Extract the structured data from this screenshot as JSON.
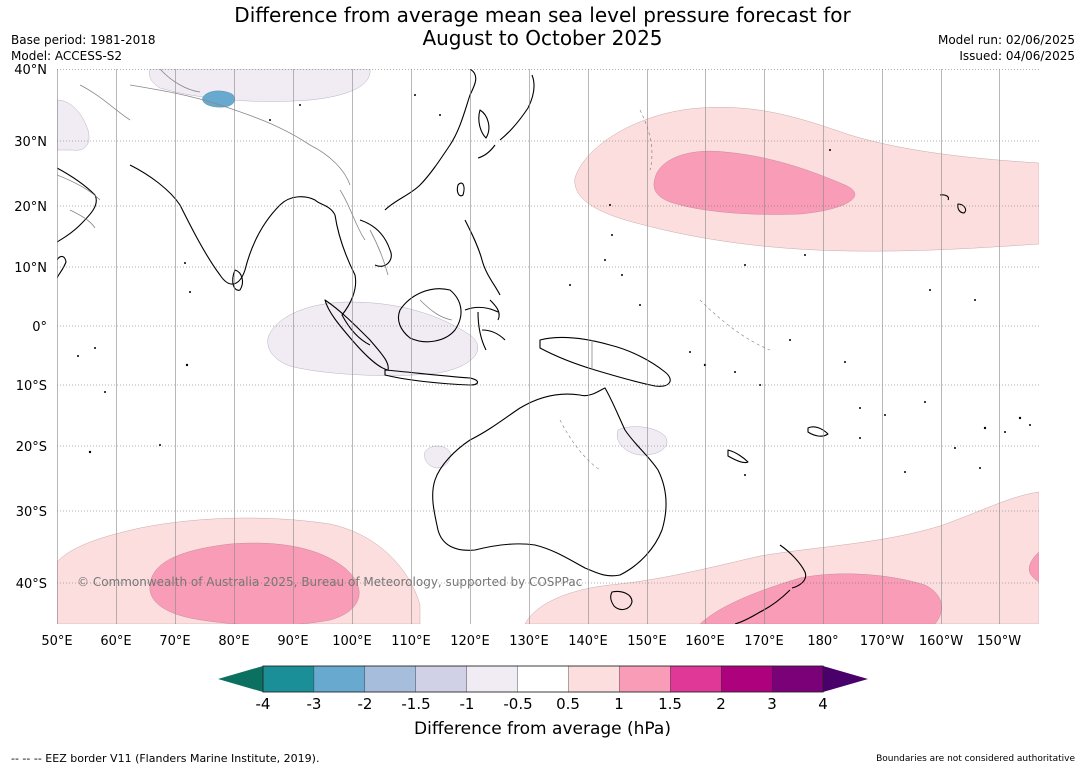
{
  "title": {
    "line1": "Difference from average mean sea level pressure forecast for",
    "line2": "August to October 2025"
  },
  "meta": {
    "base_period": "Base period: 1981-2018",
    "model": "Model: ACCESS-S2",
    "model_run": "Model run: 02/06/2025",
    "issued": "Issued: 04/06/2025"
  },
  "axes": {
    "lat_labels": [
      "40°N",
      "30°N",
      "20°N",
      "10°N",
      "0°",
      "10°S",
      "20°S",
      "30°S",
      "40°S"
    ],
    "lon_labels": [
      "50°E",
      "60°E",
      "70°E",
      "80°E",
      "90°E",
      "100°E",
      "110°E",
      "120°E",
      "130°E",
      "140°E",
      "150°E",
      "160°E",
      "170°E",
      "180°",
      "170°W",
      "160°W",
      "150°W"
    ]
  },
  "copyright": "© Commonwealth of Australia 2025, Bureau of Meteorology, supported by COSPPac",
  "colorbar": {
    "title": "Difference from average (hPa)",
    "tick_labels": [
      "-4",
      "-3",
      "-2",
      "-1.5",
      "-1",
      "-0.5",
      "0.5",
      "1",
      "1.5",
      "2",
      "3",
      "4"
    ],
    "colors": [
      "#0c7060",
      "#1b8f98",
      "#67a9cf",
      "#a6bddb",
      "#d0d1e6",
      "#f1ecf3",
      "#ffffff",
      "#fddede",
      "#f99cb7",
      "#df3896",
      "#ae017e",
      "#7a0177",
      "#49006a"
    ]
  },
  "footer": {
    "eez": "--  --  -- EEZ border V11 (Flanders Marine Institute, 2019).",
    "boundaries": "Boundaries are not considered authoritative"
  }
}
